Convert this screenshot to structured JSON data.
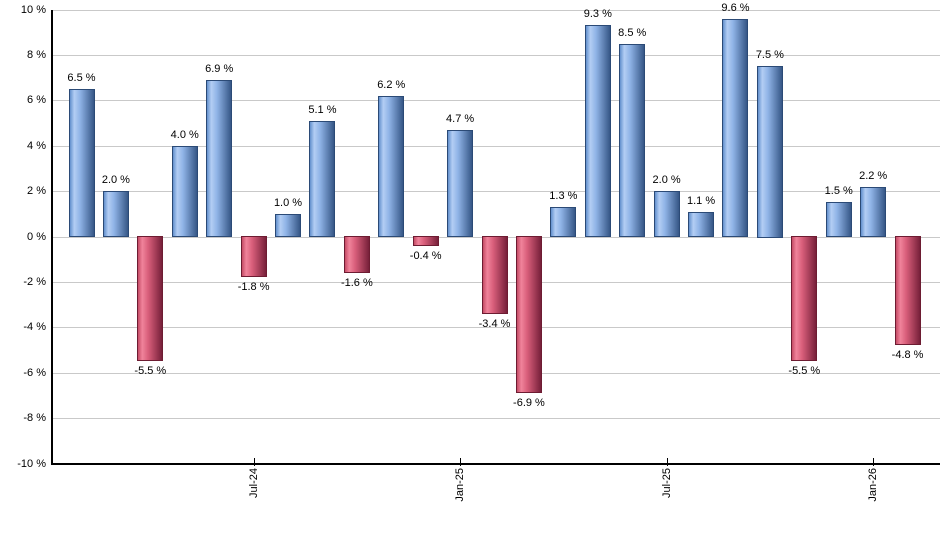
{
  "chart": {
    "background": "#ffffff"
  },
  "chart_data": {
    "type": "bar",
    "title": "",
    "xlabel": "",
    "ylabel": "",
    "unit": "%",
    "ylim": [
      -10,
      10
    ],
    "grid": true,
    "legend": "none",
    "values": [
      6.5,
      2.0,
      -5.5,
      4.0,
      6.9,
      -1.8,
      1.0,
      5.1,
      -1.6,
      6.2,
      -0.4,
      4.7,
      -3.4,
      -6.9,
      1.3,
      9.3,
      8.5,
      2.0,
      1.1,
      9.6,
      7.5,
      -5.5,
      1.5,
      2.2,
      -4.8
    ],
    "bar_labels": [
      "6.5 %",
      "2.0 %",
      "-5.5 %",
      "4.0 %",
      "6.9 %",
      "-1.8 %",
      "1.0 %",
      "5.1 %",
      "-1.6 %",
      "6.2 %",
      "-0.4 %",
      "4.7 %",
      "-3.4 %",
      "-6.9 %",
      "1.3 %",
      "9.3 %",
      "8.5 %",
      "2.0 %",
      "1.1 %",
      "9.6 %",
      "7.5 %",
      "-5.5 %",
      "1.5 %",
      "2.2 %",
      "-4.8 %"
    ],
    "x_ticks": [
      {
        "index": 5,
        "label": "Jul-24"
      },
      {
        "index": 11,
        "label": "Jan-25"
      },
      {
        "index": 17,
        "label": "Jul-25"
      },
      {
        "index": 23,
        "label": "Jan-26"
      }
    ],
    "y_ticks": [
      {
        "value": 10,
        "label": "10 %"
      },
      {
        "value": 8,
        "label": "8 %"
      },
      {
        "value": 6,
        "label": "6 %"
      },
      {
        "value": 4,
        "label": "4 %"
      },
      {
        "value": 2,
        "label": "2 %"
      },
      {
        "value": 0,
        "label": "0 %"
      },
      {
        "value": -2,
        "label": "-2 %"
      },
      {
        "value": -4,
        "label": "-4 %"
      },
      {
        "value": -6,
        "label": "-6 %"
      },
      {
        "value": -8,
        "label": "-8 %"
      },
      {
        "value": -10,
        "label": "-10 %"
      }
    ],
    "colors": {
      "positive_gradient": [
        "#6390cd",
        "#b3cef4",
        "#8fb3e6",
        "#365787"
      ],
      "positive_border": "#2b4a76",
      "negative_gradient": [
        "#c54c66",
        "#f0839b",
        "#d95f7b",
        "#77203a"
      ],
      "negative_border": "#6d1c32",
      "gridline": "#c9c9c9",
      "axis": "#000000",
      "text": "#000000"
    }
  }
}
